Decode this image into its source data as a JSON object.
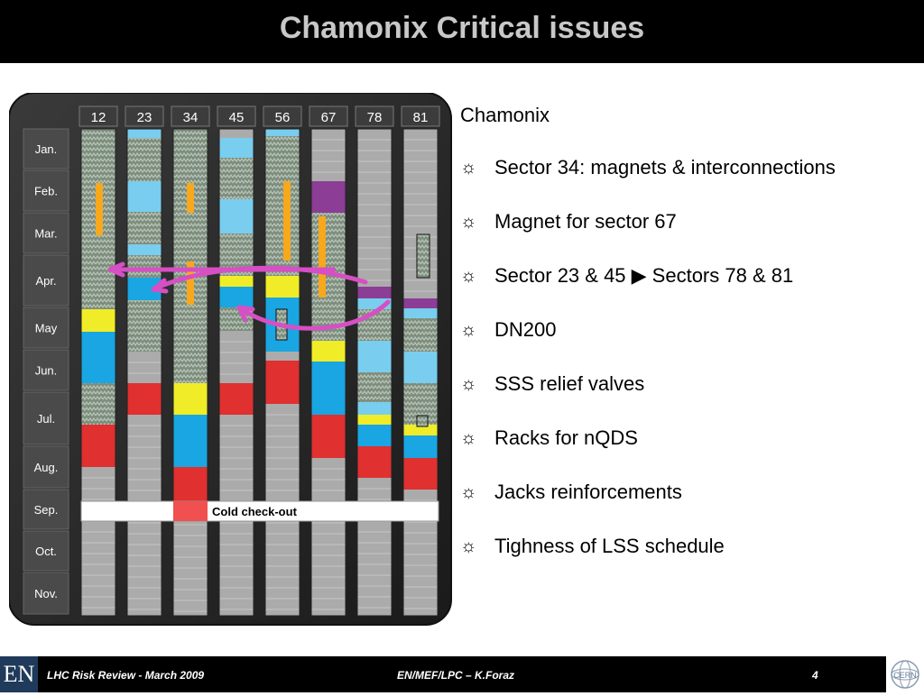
{
  "slide": {
    "title": "Chamonix Critical issues"
  },
  "schedule": {
    "sectors": [
      "12",
      "23",
      "34",
      "45",
      "56",
      "67",
      "78",
      "81"
    ],
    "months": [
      "Jan.",
      "Feb.",
      "Mar.",
      "Apr.",
      "May",
      "Jun.",
      "Jul.",
      "Aug.",
      "Sep.",
      "Oct.",
      "Nov."
    ],
    "cold_checkout_label": "Cold check-out",
    "colors": {
      "hatched": "#7d8d7d",
      "light_blue": "#79cdee",
      "blue": "#19a6e2",
      "yellow": "#f0ec27",
      "red": "#e03030",
      "purple": "#8c3d96",
      "orange": "#f7a81b",
      "magenta": "#d64fc4",
      "grey": "#ababab"
    }
  },
  "right_panel": {
    "heading": "Chamonix",
    "bullets": [
      "Sector 34: magnets & interconnections",
      "Magnet for sector 67",
      "Sector 23 & 45 ▶ Sectors 78 & 81",
      "DN200",
      "SSS relief valves",
      "Racks for nQDS",
      "Jacks reinforcements",
      "Tighness of LSS schedule"
    ],
    "bullet_icon": "sun-icon"
  },
  "footer": {
    "left": "LHC Risk Review - March 2009",
    "center": "EN/MEF/LPC – K.Foraz",
    "page": "4",
    "logo_left": "EN"
  }
}
